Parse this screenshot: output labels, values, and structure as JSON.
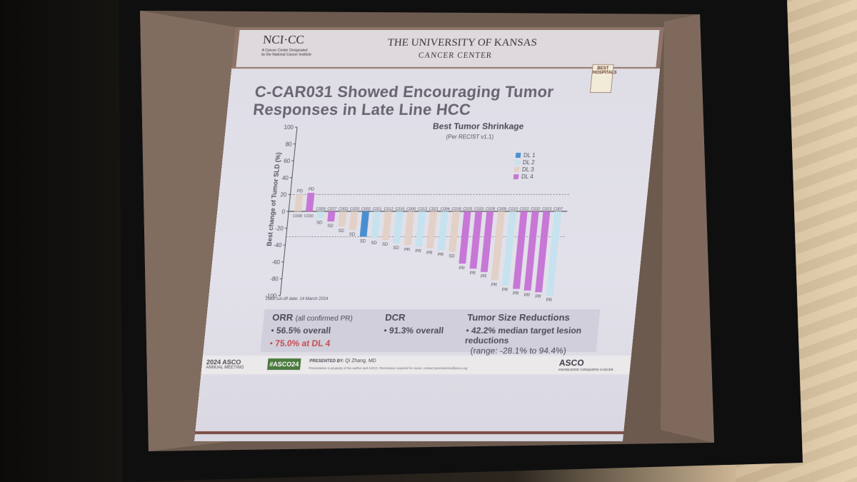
{
  "slide": {
    "nci_logo": "NCI·CC",
    "nci_tagline": "A Cancer Center Designated by the National Cancer Institute",
    "ku_title": "THE UNIVERSITY OF KANSAS",
    "ku_subtitle": "CANCER CENTER",
    "badge": "BEST HOSPITALS",
    "title_line1": "C-CAR031 Showed Encouraging Tumor",
    "title_line2": "Responses in Late Line HCC"
  },
  "chart_data": {
    "type": "bar",
    "title": "Best Tumor Shrinkage",
    "subtitle": "(Per RECIST v1.1)",
    "ylabel": "Best change of Tumor SLD (%)",
    "ylim": [
      -100,
      100
    ],
    "yticks": [
      "100",
      "80",
      "60",
      "40",
      "20",
      "0",
      "-20",
      "-40",
      "-60",
      "-80",
      "-100"
    ],
    "note": "Data cut-off date: 14 March 2024",
    "legend": [
      {
        "name": "DL 1",
        "color": "#4b8fd1"
      },
      {
        "name": "DL 2",
        "color": "#c6e2ef"
      },
      {
        "name": "DL 3",
        "color": "#e3d0c6"
      },
      {
        "name": "DL 4",
        "color": "#c777d6"
      }
    ],
    "categories": [
      "C008",
      "C030",
      "C009",
      "C027",
      "C003",
      "C020",
      "C002",
      "C011",
      "C012",
      "C016",
      "C006",
      "C013",
      "C021",
      "C004",
      "C018",
      "C025",
      "C033",
      "C028",
      "C009",
      "C010",
      "C022",
      "C032",
      "C023",
      "C007"
    ],
    "values": [
      20,
      22,
      -8,
      -12,
      -18,
      -22,
      -30,
      -32,
      -34,
      -38,
      -40,
      -42,
      -44,
      -46,
      -48,
      -62,
      -68,
      -72,
      -82,
      -88,
      -92,
      -94,
      -96,
      -100
    ],
    "levels": [
      3,
      4,
      2,
      4,
      3,
      3,
      1,
      2,
      3,
      2,
      3,
      2,
      3,
      2,
      3,
      4,
      4,
      4,
      3,
      2,
      4,
      4,
      4,
      2
    ],
    "labels": [
      "PD",
      "PD",
      "SD",
      "SD",
      "SD",
      "SD",
      "SD",
      "SD",
      "SD",
      "SD",
      "PR",
      "PR",
      "PR",
      "PR",
      "SD",
      "PR",
      "PR",
      "PR",
      "PR",
      "PR",
      "PR",
      "PR",
      "PR",
      "PR"
    ]
  },
  "summary": {
    "orr_heading": "ORR",
    "orr_note": "(all confirmed PR)",
    "orr_point1": "56.5% overall",
    "orr_point2": "75.0% at DL 4",
    "dcr_heading": "DCR",
    "dcr_point1": "91.3% overall",
    "tsr_heading": "Tumor Size Reductions",
    "tsr_point1": "42.2% median target lesion reductions",
    "tsr_point2": "(range: -28.1% to 94.4%)"
  },
  "footer": {
    "asco_year": "2024 ASCO",
    "asco_meeting": "ANNUAL MEETING",
    "hashtag": "#ASCO24",
    "presented_by": "PRESENTED BY:",
    "presenter": "Qi Zhang, MD",
    "notice": "Presentation is property of the author and ASCO. Permission required for reuse; contact permissions@asco.org",
    "asco_logo": "ASCO",
    "asco_tag": "KNOWLEDGE CONQUERS CANCER"
  }
}
